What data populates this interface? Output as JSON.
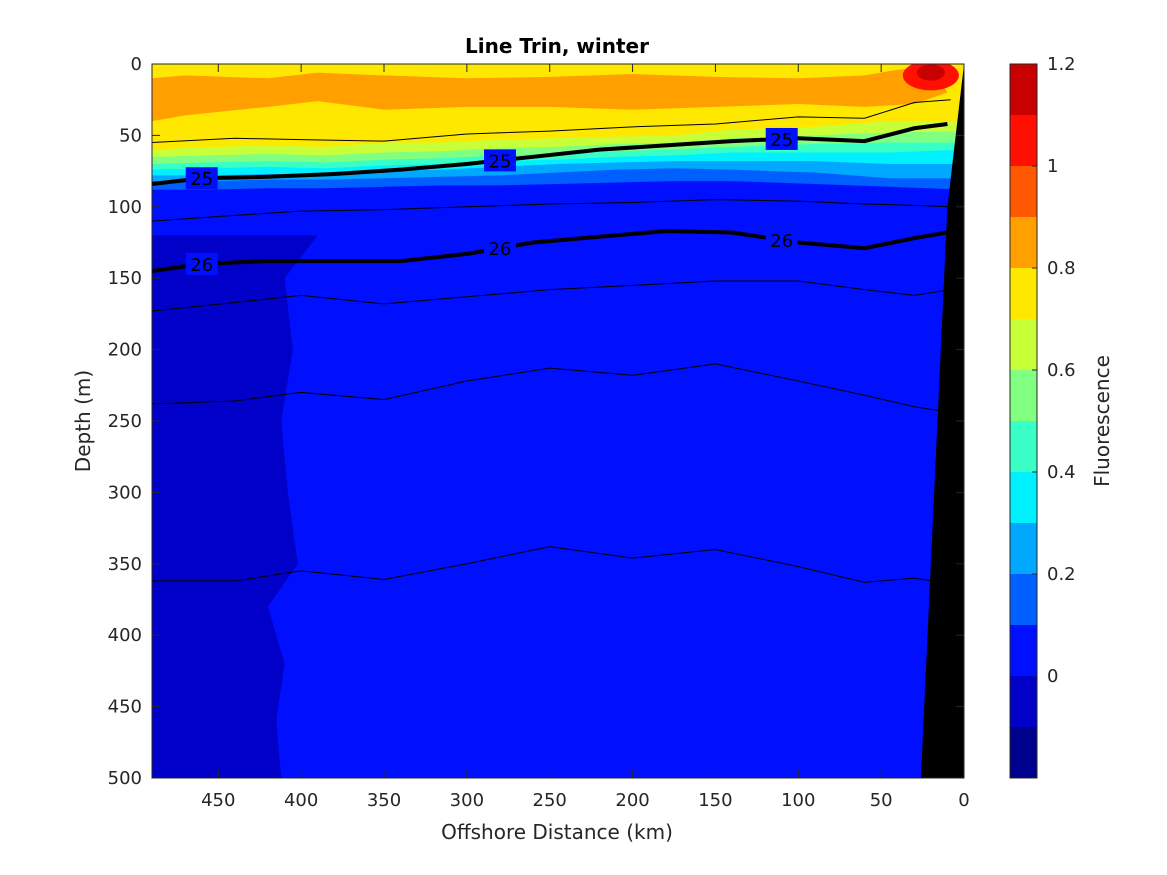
{
  "chart_data": {
    "type": "contour",
    "title": "Line Trin, winter",
    "xlabel": "Offshore Distance (km)",
    "ylabel": "Depth (m)",
    "xlim": [
      490,
      0
    ],
    "ylim": [
      0,
      500
    ],
    "x_reversed": true,
    "y_reversed": true,
    "x_ticks": [
      450,
      400,
      350,
      300,
      250,
      200,
      150,
      100,
      50,
      0
    ],
    "y_ticks": [
      0,
      50,
      100,
      150,
      200,
      250,
      300,
      350,
      400,
      450,
      500
    ],
    "colorbar": {
      "label": "Fluorescence",
      "ticks": [
        0,
        0.2,
        0.4,
        0.6,
        0.8,
        1,
        1.2
      ],
      "levels": [
        -0.2,
        -0.1,
        0,
        0.1,
        0.2,
        0.3,
        0.4,
        0.5,
        0.6,
        0.7,
        0.8,
        0.9,
        1.0,
        1.1,
        1.2
      ],
      "colors": [
        "#00008f",
        "#0000c8",
        "#0010ff",
        "#0060ff",
        "#00a8ff",
        "#00f0ff",
        "#38ffc6",
        "#80ff80",
        "#c8ff38",
        "#ffe800",
        "#ffa000",
        "#ff5800",
        "#ff1000",
        "#c80000"
      ]
    },
    "fluorescence_bands": [
      {
        "level": 0.7,
        "depth": [
          60,
          58,
          57,
          58,
          55,
          55,
          53,
          52,
          51,
          50,
          46,
          44,
          40,
          40
        ]
      },
      {
        "level": 0.6,
        "depth": [
          65,
          64,
          63,
          64,
          62,
          61,
          59,
          58,
          56,
          55,
          52,
          50,
          48,
          47
        ]
      },
      {
        "level": 0.5,
        "depth": [
          70,
          69,
          68,
          69,
          67,
          66,
          64,
          63,
          61,
          60,
          58,
          56,
          55,
          55
        ]
      },
      {
        "level": 0.4,
        "depth": [
          74,
          73,
          72,
          73,
          71,
          70,
          68,
          67,
          65,
          64,
          62,
          62,
          62,
          60
        ]
      },
      {
        "level": 0.3,
        "depth": [
          78,
          78,
          77,
          77,
          75,
          74,
          72,
          70,
          69,
          68,
          68,
          68,
          70,
          70
        ]
      },
      {
        "level": 0.2,
        "depth": [
          82,
          82,
          81,
          81,
          80,
          79,
          78,
          76,
          74,
          73,
          74,
          76,
          80,
          80
        ]
      },
      {
        "level": 0.1,
        "depth": [
          88,
          88,
          87,
          87,
          86,
          85,
          85,
          84,
          83,
          82,
          82,
          84,
          86,
          88
        ]
      }
    ],
    "isopycnals": [
      {
        "label": "25",
        "labeled": true,
        "x": [
          490,
          460,
          420,
          380,
          340,
          300,
          260,
          220,
          180,
          140,
          100,
          60,
          30,
          10
        ],
        "y": [
          84,
          80,
          79,
          77,
          74,
          70,
          65,
          60,
          57,
          54,
          52,
          54,
          45,
          42
        ]
      },
      {
        "label": "26",
        "labeled": true,
        "x": [
          490,
          460,
          420,
          380,
          340,
          300,
          260,
          220,
          180,
          140,
          100,
          60,
          30,
          10
        ],
        "y": [
          145,
          140,
          138,
          138,
          138,
          133,
          125,
          121,
          117,
          118,
          125,
          129,
          122,
          118
        ]
      },
      {
        "labeled": false,
        "x": [
          490,
          440,
          400,
          350,
          300,
          250,
          200,
          150,
          100,
          60,
          30,
          8
        ],
        "y": [
          55,
          52,
          53,
          54,
          49,
          47,
          44,
          42,
          37,
          38,
          27,
          25
        ]
      },
      {
        "labeled": false,
        "x": [
          490,
          440,
          400,
          350,
          300,
          250,
          200,
          150,
          100,
          60,
          30,
          8
        ],
        "y": [
          110,
          106,
          103,
          102,
          100,
          98,
          97,
          95,
          96,
          98,
          99,
          100
        ]
      },
      {
        "labeled": false,
        "x": [
          490,
          440,
          400,
          350,
          300,
          250,
          200,
          150,
          100,
          60,
          30,
          8
        ],
        "y": [
          173,
          167,
          162,
          168,
          163,
          158,
          155,
          152,
          152,
          158,
          162,
          158
        ]
      },
      {
        "labeled": false,
        "x": [
          490,
          440,
          400,
          350,
          300,
          250,
          200,
          150,
          100,
          60,
          30,
          8
        ],
        "y": [
          238,
          236,
          230,
          235,
          222,
          213,
          218,
          210,
          222,
          232,
          240,
          244
        ]
      },
      {
        "labeled": false,
        "x": [
          490,
          440,
          400,
          350,
          300,
          250,
          200,
          150,
          100,
          60,
          30,
          8
        ],
        "y": [
          362,
          362,
          355,
          361,
          350,
          338,
          346,
          340,
          352,
          363,
          360,
          364
        ]
      }
    ],
    "seafloor_top_km": [
      490,
      0
    ],
    "seafloor_x_at_depth": {
      "depths": [
        0,
        60,
        100,
        200,
        300,
        400,
        500
      ],
      "x": [
        0,
        6,
        10,
        14,
        18,
        22,
        26
      ]
    }
  }
}
